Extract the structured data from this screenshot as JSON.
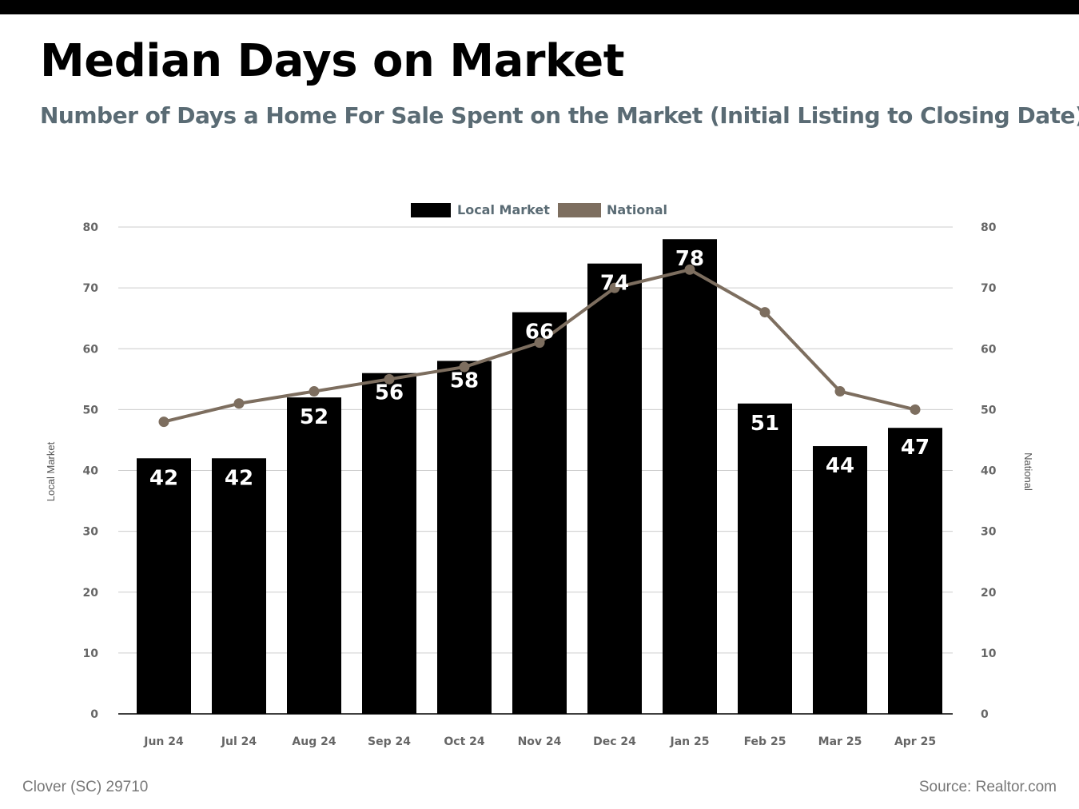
{
  "header": {
    "title": "Median Days on Market",
    "subtitle": "Number of Days a Home For Sale Spent on the Market (Initial Listing to Closing Date)"
  },
  "footer": {
    "location": "Clover (SC) 29710",
    "source": "Source: Realtor.com"
  },
  "colors": {
    "bar": "#000000",
    "line": "#7d6e5f",
    "grid": "#cccccc",
    "axis_text": "#666666",
    "subtitle": "#5a6b74"
  },
  "chart_data": {
    "type": "bar",
    "categories": [
      "Jun 24",
      "Jul 24",
      "Aug 24",
      "Sep 24",
      "Oct 24",
      "Nov 24",
      "Dec 24",
      "Jan 25",
      "Feb 25",
      "Mar 25",
      "Apr 25"
    ],
    "series": [
      {
        "name": "Local Market",
        "type": "bar",
        "axis": "left",
        "values": [
          42,
          42,
          52,
          56,
          58,
          66,
          74,
          78,
          51,
          44,
          47
        ],
        "labels": [
          "42",
          "42",
          "52",
          "56",
          "58",
          "66",
          "74",
          "78",
          "51",
          "44",
          "47"
        ]
      },
      {
        "name": "National",
        "type": "line",
        "axis": "right",
        "values": [
          48,
          51,
          53,
          55,
          57,
          61,
          70,
          73,
          66,
          53,
          50
        ]
      }
    ],
    "ylabel": "Local Market",
    "y2label": "National",
    "ylim": [
      0,
      80
    ],
    "y2lim": [
      0,
      80
    ],
    "yticks": [
      "0",
      "10",
      "20",
      "30",
      "40",
      "50",
      "60",
      "70",
      "80"
    ],
    "y2ticks": [
      "0",
      "10",
      "20",
      "30",
      "40",
      "50",
      "60",
      "70",
      "80"
    ],
    "grid": true,
    "legend": "top-center"
  }
}
